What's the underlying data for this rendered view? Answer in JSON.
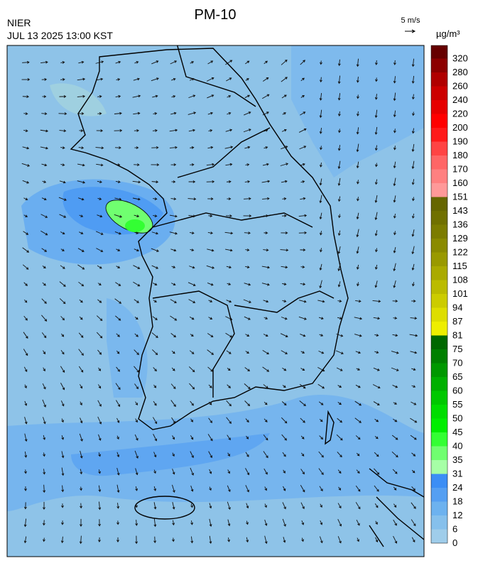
{
  "header": {
    "title": "PM-10",
    "agency": "NIER",
    "timestamp": "JUL 13 2025 13:00 KST",
    "wind_scale": "5 m/s"
  },
  "colorbar": {
    "unit": "µg/m³",
    "ticks": [
      0,
      6,
      12,
      18,
      24,
      31,
      35,
      40,
      45,
      50,
      55,
      60,
      65,
      70,
      75,
      81,
      87,
      94,
      101,
      108,
      115,
      122,
      129,
      136,
      143,
      151,
      160,
      170,
      180,
      190,
      200,
      220,
      240,
      260,
      280,
      320
    ],
    "colors": [
      "#9fcdea",
      "#86c0ec",
      "#6db2ef",
      "#559ff2",
      "#3c8ef5",
      "#a6ffa6",
      "#70ff70",
      "#33ff33",
      "#00ee00",
      "#00dd00",
      "#00c800",
      "#00b000",
      "#009800",
      "#008000",
      "#006800",
      "#eeee00",
      "#dede00",
      "#cccc00",
      "#bbbb00",
      "#aaaa00",
      "#999900",
      "#8a8a00",
      "#7c7c00",
      "#707000",
      "#666600",
      "#ff9999",
      "#ff8080",
      "#ff6666",
      "#ff4444",
      "#ff1a1a",
      "#ff0000",
      "#e60000",
      "#cc0000",
      "#b00000",
      "#8c0000",
      "#660000"
    ]
  }
}
